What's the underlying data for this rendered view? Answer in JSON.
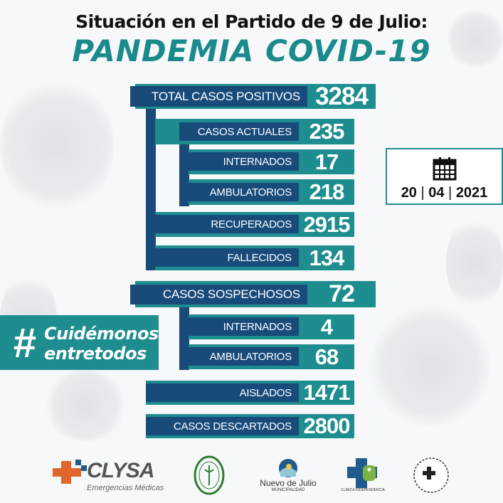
{
  "header": {
    "line1": "Situación en el Partido de 9 de Julio:",
    "line2": "PANDEMIA COVID-19"
  },
  "colors": {
    "navy": "#184a7a",
    "teal": "#1e8d8f"
  },
  "positivos": {
    "total": {
      "label": "TOTAL CASOS POSITIVOS",
      "value": "3284"
    },
    "actuales": {
      "label": "CASOS ACTUALES",
      "value": "235"
    },
    "internados": {
      "label": "INTERNADOS",
      "value": "17"
    },
    "ambulatorios": {
      "label": "AMBULATORIOS",
      "value": "218"
    },
    "recuperados": {
      "label": "RECUPERADOS",
      "value": "2915"
    },
    "fallecidos": {
      "label": "FALLECIDOS",
      "value": "134"
    }
  },
  "sospechosos": {
    "total": {
      "label": "CASOS SOSPECHOSOS",
      "value": "72"
    },
    "internados": {
      "label": "INTERNADOS",
      "value": "4"
    },
    "ambulatorios": {
      "label": "AMBULATORIOS",
      "value": "68"
    }
  },
  "aislados": {
    "label": "AISLADOS",
    "value": "1471"
  },
  "descartados": {
    "label": "CASOS DESCARTADOS",
    "value": "2800"
  },
  "date": {
    "icon": "calendar-icon",
    "day": "20",
    "month": "04",
    "year": "2021"
  },
  "hashtag": {
    "symbol": "#",
    "line1": "Cuidémonos",
    "line2": "entretodos"
  },
  "logos": {
    "clysa": {
      "name": "CLYSA",
      "tagline": "Emergencias Médicas"
    },
    "municipalidad": {
      "name": "Nuevo de Julio",
      "sub": "MUNICIPALIDAD"
    },
    "clinica": {
      "name": "CLINICA INDEPENDENCIA"
    }
  }
}
